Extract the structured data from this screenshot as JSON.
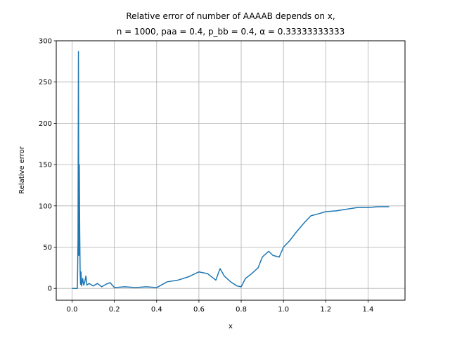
{
  "chart_data": {
    "type": "line",
    "title_line1": "Relative error of number of AAAAB depends on x,",
    "title_line2": "n = 1000, paa = 0.4, p_bb = 0.4, α = 0.33333333333",
    "xlabel": "x",
    "ylabel": "Relative error",
    "xlim": [
      -0.075,
      1.575
    ],
    "ylim": [
      -14.3,
      300
    ],
    "xticks": [
      0.0,
      0.2,
      0.4,
      0.6,
      0.8,
      1.0,
      1.2,
      1.4
    ],
    "xtick_labels": [
      "0.0",
      "0.2",
      "0.4",
      "0.6",
      "0.8",
      "1.0",
      "1.2",
      "1.4"
    ],
    "yticks": [
      0,
      50,
      100,
      150,
      200,
      250,
      300
    ],
    "ytick_labels": [
      "0",
      "50",
      "100",
      "150",
      "200",
      "250",
      "300"
    ],
    "grid": true,
    "line_color": "#1f77b4",
    "series": [
      {
        "x": [
          0.0,
          0.02,
          0.025,
          0.028,
          0.03,
          0.032,
          0.034,
          0.036,
          0.038,
          0.04,
          0.042,
          0.045,
          0.048,
          0.05,
          0.055,
          0.06,
          0.065,
          0.07,
          0.08,
          0.1,
          0.12,
          0.14,
          0.16,
          0.18,
          0.2,
          0.25,
          0.3,
          0.35,
          0.4,
          0.45,
          0.5,
          0.55,
          0.6,
          0.64,
          0.68,
          0.7,
          0.72,
          0.75,
          0.78,
          0.8,
          0.82,
          0.85,
          0.88,
          0.9,
          0.93,
          0.95,
          0.98,
          1.0,
          1.03,
          1.06,
          1.1,
          1.13,
          1.16,
          1.2,
          1.25,
          1.3,
          1.35,
          1.4,
          1.45,
          1.5
        ],
        "y": [
          0,
          0,
          0,
          60,
          287,
          40,
          150,
          70,
          20,
          5,
          20,
          3,
          8,
          12,
          4,
          8,
          15,
          4,
          6,
          3,
          6,
          2,
          5,
          7,
          1,
          2,
          1,
          2,
          1,
          8,
          10,
          14,
          20,
          18,
          10,
          24,
          15,
          8,
          3,
          2,
          12,
          18,
          25,
          38,
          45,
          40,
          38,
          50,
          58,
          68,
          80,
          88,
          90,
          93,
          94,
          96,
          98,
          98,
          99,
          99
        ]
      }
    ]
  }
}
